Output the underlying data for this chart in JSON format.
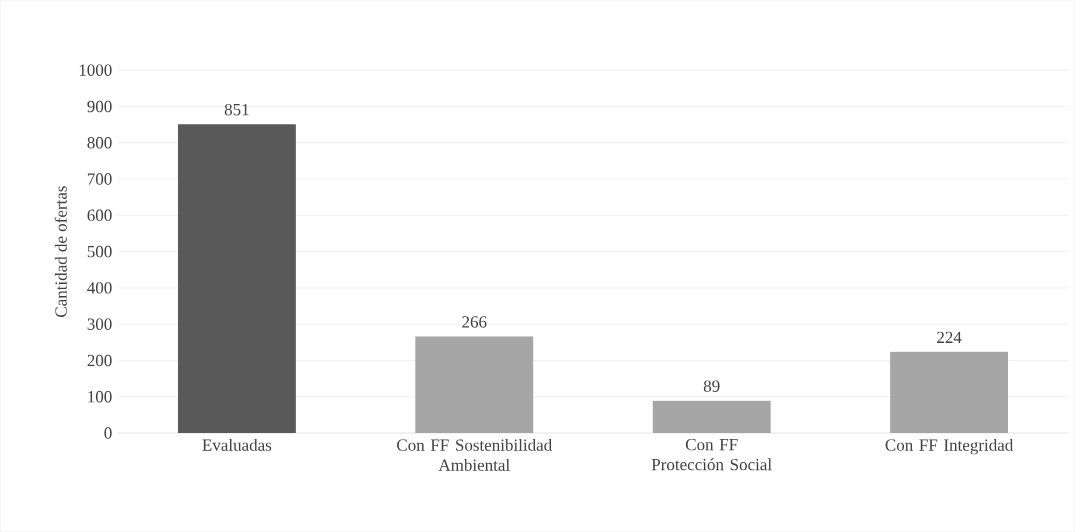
{
  "chart_data": {
    "type": "bar",
    "ylabel": "Cantidad de ofertas",
    "categories": [
      "Evaluadas",
      "Con FF Sostenibilidad Ambiental",
      "Con FF Protección Social",
      "Con FF Integridad"
    ],
    "values": [
      851,
      266,
      89,
      224
    ],
    "colors": [
      "#595959",
      "#a6a6a6",
      "#a6a6a6",
      "#a6a6a6"
    ],
    "ylim": [
      0,
      1000
    ],
    "yticks": [
      0,
      100,
      200,
      300,
      400,
      500,
      600,
      700,
      800,
      900,
      1000
    ],
    "grid": "y",
    "data_labels": true
  }
}
